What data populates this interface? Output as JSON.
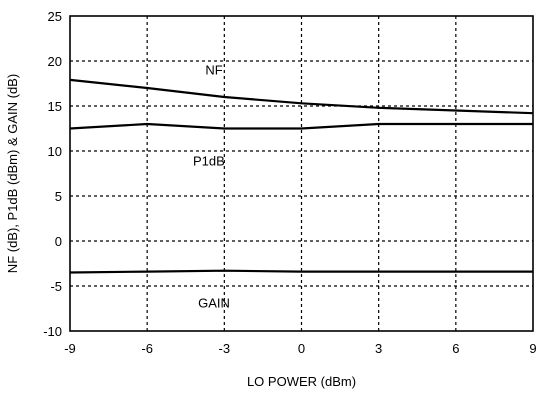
{
  "chart_data": {
    "type": "line",
    "title": "",
    "xlabel": "LO POWER (dBm)",
    "ylabel": "NF (dB), P1dB (dBm) & GAIN (dB)",
    "xlim": [
      -9,
      9
    ],
    "ylim": [
      -10,
      25
    ],
    "x_ticks": [
      -9,
      -6,
      -3,
      0,
      3,
      6,
      9
    ],
    "y_ticks": [
      -10,
      -5,
      0,
      5,
      10,
      15,
      20,
      25
    ],
    "grid": true,
    "series": [
      {
        "name": "NF",
        "x": [
          -9,
          -6,
          -3,
          0,
          3,
          6,
          9
        ],
        "y": [
          17.9,
          17.0,
          16.0,
          15.3,
          14.8,
          14.5,
          14.2
        ]
      },
      {
        "name": "P1dB",
        "x": [
          -9,
          -6,
          -3,
          0,
          3,
          6,
          9
        ],
        "y": [
          12.5,
          13.0,
          12.5,
          12.5,
          13.0,
          13.0,
          13.0
        ]
      },
      {
        "name": "GAIN",
        "x": [
          -9,
          -6,
          -3,
          0,
          3,
          6,
          9
        ],
        "y": [
          -3.5,
          -3.4,
          -3.3,
          -3.4,
          -3.4,
          -3.4,
          -3.4
        ]
      }
    ]
  }
}
